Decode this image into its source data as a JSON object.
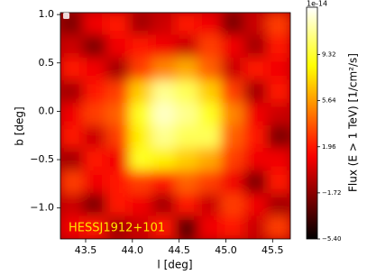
{
  "chart_data": {
    "type": "heatmap",
    "title": "HESSJ1912+101",
    "x_label": "l [deg]",
    "y_label": "b [deg]",
    "colorbar_label": "Flux (E > 1 TeV) [1/cm²/s]",
    "colorbar_offset": "1e-14",
    "colormap": "hot",
    "xlim": [
      43.23,
      45.69
    ],
    "ylim": [
      -1.32,
      1.02
    ],
    "clim": [
      -5.4,
      13.1
    ],
    "xticks": [
      43.5,
      {
        "value": 44.0,
        "label": "44.0"
      },
      44.5,
      {
        "value": 45.0,
        "label": "45.0"
      },
      45.5
    ],
    "yticks": [
      {
        "value": 1.0,
        "label": "1.0"
      },
      0.5,
      {
        "value": 0.0,
        "label": "0.0"
      },
      {
        "value": -0.5,
        "label": "−0.5"
      },
      {
        "value": -1.0,
        "label": "−1.0"
      }
    ],
    "cticks": [
      9.32,
      5.64,
      1.96,
      {
        "value": -1.72,
        "label": "−1.72"
      },
      {
        "value": -5.4,
        "label": "−5.40"
      }
    ],
    "z": [
      [
        -2,
        1,
        2,
        -1,
        0,
        2,
        1,
        -2,
        0,
        3
      ],
      [
        0,
        -2,
        1,
        2,
        1,
        0,
        3,
        1,
        -1,
        2
      ],
      [
        2,
        1,
        -1,
        3,
        5,
        6,
        4,
        0,
        2,
        1
      ],
      [
        -1,
        2,
        3,
        7,
        11,
        10,
        7,
        3,
        -1,
        2
      ],
      [
        1,
        3,
        4,
        9,
        12,
        11,
        9,
        5,
        1,
        0
      ],
      [
        2,
        0,
        3,
        8,
        11,
        10,
        10,
        4,
        2,
        -2
      ],
      [
        -1,
        2,
        1,
        9,
        8,
        7,
        6,
        3,
        1,
        1
      ],
      [
        3,
        1,
        2,
        3,
        2,
        4,
        3,
        1,
        -2,
        2
      ],
      [
        0,
        -2,
        2,
        1,
        -1,
        2,
        0,
        3,
        1,
        -1
      ],
      [
        1,
        2,
        -1,
        0,
        2,
        -3,
        1,
        2,
        0,
        3
      ]
    ]
  }
}
